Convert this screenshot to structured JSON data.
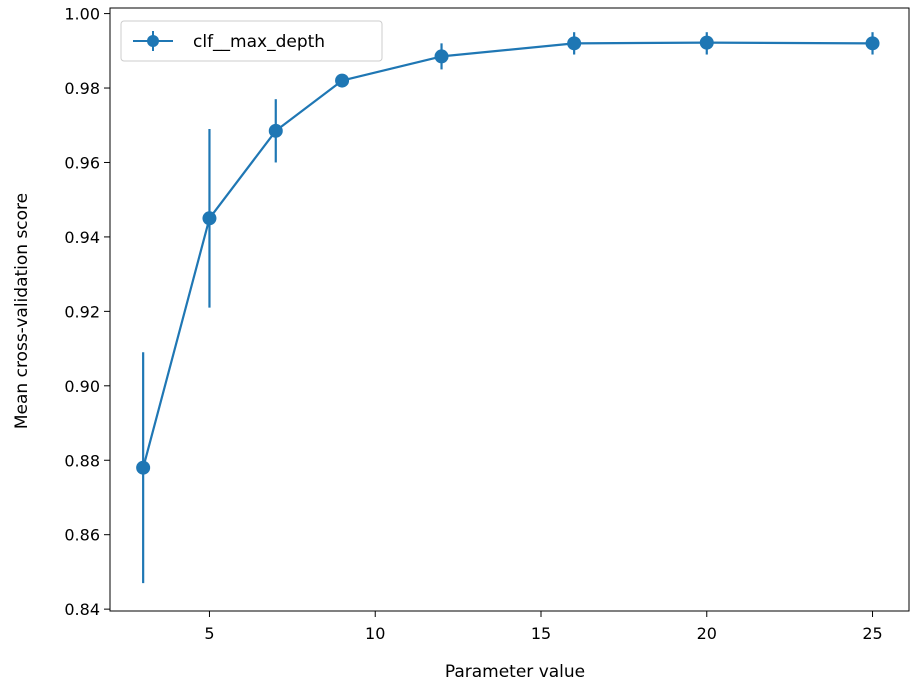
{
  "chart_data": {
    "type": "line",
    "title": "",
    "xlabel": "Parameter value",
    "ylabel": "Mean cross-validation score",
    "xlim": [
      2.0,
      26.1
    ],
    "ylim": [
      0.8395,
      1.0015
    ],
    "xticks": [
      5,
      10,
      15,
      20,
      25
    ],
    "yticks": [
      0.84,
      0.86,
      0.88,
      0.9,
      0.92,
      0.94,
      0.96,
      0.98,
      1.0
    ],
    "ytick_labels": [
      "0.84",
      "0.86",
      "0.88",
      "0.90",
      "0.92",
      "0.94",
      "0.96",
      "0.98",
      "1.00"
    ],
    "grid": false,
    "legend_position": "top-left",
    "series": [
      {
        "name": "clf__max_depth",
        "color": "#1f77b4",
        "x": [
          3,
          5,
          7,
          9,
          12,
          16,
          20,
          25
        ],
        "y": [
          0.878,
          0.945,
          0.9685,
          0.982,
          0.9885,
          0.992,
          0.9922,
          0.992
        ],
        "yerr_low": [
          0.847,
          0.921,
          0.96,
          0.981,
          0.985,
          0.989,
          0.989,
          0.989
        ],
        "yerr_high": [
          0.909,
          0.969,
          0.977,
          0.983,
          0.992,
          0.995,
          0.995,
          0.995
        ]
      }
    ]
  }
}
